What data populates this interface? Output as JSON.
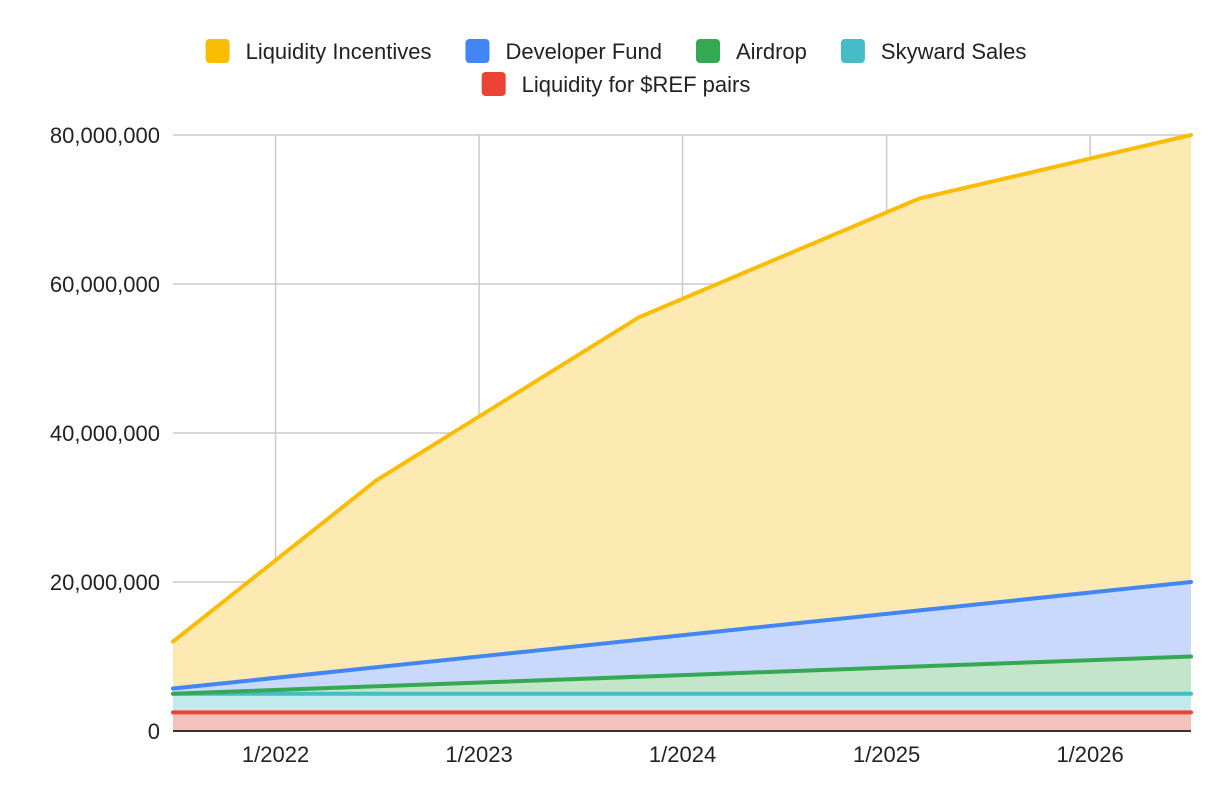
{
  "chart_data": {
    "type": "area",
    "stacked": true,
    "title": "",
    "xlabel": "",
    "ylabel": "",
    "x_ticks": [
      "1/2022",
      "1/2023",
      "1/2024",
      "1/2025",
      "1/2026"
    ],
    "y_ticks": [
      "0",
      "20,000,000",
      "40,000,000",
      "60,000,000",
      "80,000,000"
    ],
    "ylim": [
      0,
      80000000
    ],
    "xlim": [
      "2021-07-01",
      "2026-07-01"
    ],
    "grid": true,
    "legend_position": "top",
    "series": [
      {
        "name": "Liquidity for $REF pairs",
        "color": "#ea4335",
        "fill": "#f5c1bd",
        "points": [
          {
            "x": "2021-07-01",
            "y": 2500000
          },
          {
            "x": "2026-07-01",
            "y": 2500000
          }
        ]
      },
      {
        "name": "Skyward Sales",
        "color": "#46bdc6",
        "fill": "#c0eaec",
        "points": [
          {
            "x": "2021-07-01",
            "y": 2500000
          },
          {
            "x": "2026-07-01",
            "y": 2500000
          }
        ]
      },
      {
        "name": "Airdrop",
        "color": "#34a853",
        "fill": "#c3e5ca",
        "points": [
          {
            "x": "2021-07-01",
            "y": 0
          },
          {
            "x": "2026-07-01",
            "y": 5000000
          }
        ]
      },
      {
        "name": "Developer Fund",
        "color": "#4285f4",
        "fill": "#c8d9fb",
        "points": [
          {
            "x": "2021-07-01",
            "y": 700000
          },
          {
            "x": "2026-07-01",
            "y": 10000000
          }
        ]
      },
      {
        "name": "Liquidity Incentives",
        "color": "#fbbc04",
        "fill": "#fde9b2",
        "points": [
          {
            "x": "2021-07-01",
            "y": 6300000
          },
          {
            "x": "2022-07-01",
            "y": 25100000
          },
          {
            "x": "2023-10-15",
            "y": 43300000
          },
          {
            "x": "2025-03-01",
            "y": 55300000
          },
          {
            "x": "2026-07-01",
            "y": 60000000
          }
        ]
      }
    ],
    "legend": [
      {
        "name": "Liquidity Incentives",
        "color": "#fbbc04"
      },
      {
        "name": "Developer Fund",
        "color": "#4285f4"
      },
      {
        "name": "Airdrop",
        "color": "#34a853"
      },
      {
        "name": "Skyward Sales",
        "color": "#46bdc6"
      },
      {
        "name": "Liquidity for $REF pairs",
        "color": "#ea4335"
      }
    ]
  }
}
